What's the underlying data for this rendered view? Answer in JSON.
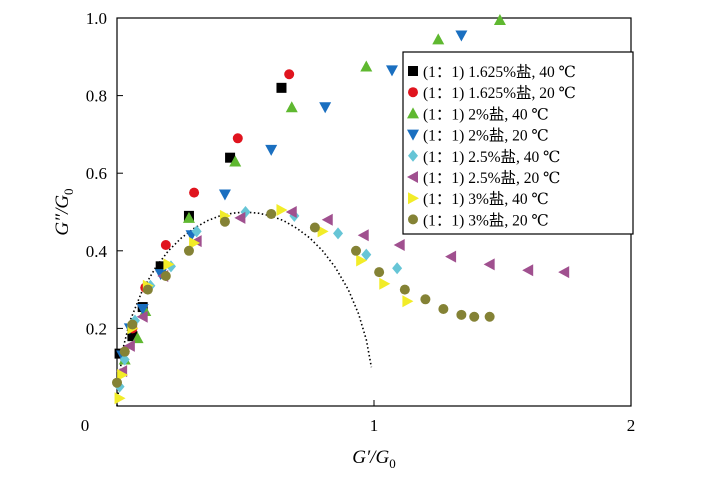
{
  "chart_data": {
    "type": "scatter",
    "title": "",
    "xlabel": "G′/G",
    "xlabel_sub": "0",
    "ylabel": "G″/G",
    "ylabel_sub": "0",
    "xlim": [
      0,
      2
    ],
    "ylim": [
      0,
      1.0
    ],
    "xticks": [
      0,
      1,
      2
    ],
    "yticks": [
      0.2,
      0.4,
      0.6,
      0.8,
      1.0
    ],
    "xtick_labels": [
      "0",
      "1",
      "2"
    ],
    "ytick_labels": [
      "0.2",
      "0.4",
      "0.6",
      "0.8",
      "1.0"
    ],
    "grid": false,
    "legend_position": "top-right",
    "series": [
      {
        "name": "(1：1) 1.625%盐, 40 ℃",
        "marker": "square",
        "color": "#000000",
        "x": [
          0.01,
          0.06,
          0.1,
          0.17,
          0.28,
          0.44,
          0.64
        ],
        "y": [
          0.135,
          0.18,
          0.255,
          0.36,
          0.49,
          0.64,
          0.82
        ]
      },
      {
        "name": "(1：1) 1.625%盐, 20 ℃",
        "marker": "circle",
        "color": "#e0141e",
        "x": [
          0.03,
          0.06,
          0.11,
          0.19,
          0.3,
          0.47,
          0.67
        ],
        "y": [
          0.14,
          0.2,
          0.305,
          0.415,
          0.55,
          0.69,
          0.855
        ]
      },
      {
        "name": "(1：1) 2%盐, 40 ℃",
        "marker": "triangle-up",
        "color": "#5fb830",
        "x": [
          0.03,
          0.08,
          0.11,
          0.28,
          0.46,
          0.68,
          0.97,
          1.25,
          1.49
        ],
        "y": [
          0.12,
          0.175,
          0.245,
          0.485,
          0.63,
          0.77,
          0.875,
          0.945,
          0.995
        ]
      },
      {
        "name": "(1：1) 2%盐, 20 ℃",
        "marker": "triangle-down",
        "color": "#1a6fc0",
        "x": [
          0.02,
          0.05,
          0.1,
          0.17,
          0.29,
          0.42,
          0.6,
          0.81,
          1.07,
          1.34
        ],
        "y": [
          0.13,
          0.2,
          0.25,
          0.34,
          0.44,
          0.545,
          0.66,
          0.77,
          0.865,
          0.955
        ]
      },
      {
        "name": "(1：1) 2.5%盐, 40 ℃",
        "marker": "diamond",
        "color": "#66c5d6",
        "x": [
          0.01,
          0.03,
          0.07,
          0.13,
          0.21,
          0.31,
          0.5,
          0.69,
          0.86,
          0.97,
          1.09
        ],
        "y": [
          0.05,
          0.12,
          0.22,
          0.31,
          0.36,
          0.45,
          0.5,
          0.49,
          0.445,
          0.39,
          0.355
        ]
      },
      {
        "name": "(1：1) 2.5%盐, 20 ℃",
        "marker": "triangle-left",
        "color": "#a0508f",
        "x": [
          0.02,
          0.05,
          0.1,
          0.18,
          0.31,
          0.48,
          0.68,
          0.82,
          0.96,
          1.1,
          1.3,
          1.45,
          1.6,
          1.74
        ],
        "y": [
          0.09,
          0.155,
          0.23,
          0.335,
          0.425,
          0.485,
          0.5,
          0.48,
          0.44,
          0.415,
          0.385,
          0.365,
          0.35,
          0.345
        ]
      },
      {
        "name": "(1：1) 3%盐, 40 ℃",
        "marker": "triangle-right",
        "color": "#f2ec28",
        "x": [
          0.01,
          0.02,
          0.06,
          0.12,
          0.2,
          0.3,
          0.42,
          0.64,
          0.8,
          0.95,
          1.04,
          1.13
        ],
        "y": [
          0.02,
          0.08,
          0.2,
          0.31,
          0.365,
          0.42,
          0.49,
          0.505,
          0.45,
          0.375,
          0.315,
          0.27
        ]
      },
      {
        "name": "(1：1) 3%盐, 20 ℃",
        "marker": "circle",
        "color": "#848235",
        "x": [
          0.0,
          0.03,
          0.06,
          0.12,
          0.19,
          0.28,
          0.42,
          0.6,
          0.77,
          0.93,
          1.02,
          1.12,
          1.2,
          1.27,
          1.34,
          1.39,
          1.45
        ],
        "y": [
          0.06,
          0.14,
          0.21,
          0.3,
          0.335,
          0.4,
          0.475,
          0.495,
          0.46,
          0.4,
          0.345,
          0.3,
          0.275,
          0.25,
          0.235,
          0.23,
          0.23
        ]
      }
    ],
    "reference_curve": {
      "style": "dotted",
      "color": "#000000",
      "x": [
        0.0,
        0.02,
        0.05,
        0.1,
        0.15,
        0.2,
        0.25,
        0.3,
        0.35,
        0.4,
        0.45,
        0.5,
        0.55,
        0.6,
        0.65,
        0.7,
        0.75,
        0.8,
        0.85,
        0.9,
        0.94,
        0.97,
        0.99
      ],
      "y": [
        0.0,
        0.139,
        0.218,
        0.3,
        0.357,
        0.4,
        0.433,
        0.458,
        0.477,
        0.49,
        0.497,
        0.5,
        0.497,
        0.49,
        0.477,
        0.458,
        0.433,
        0.4,
        0.357,
        0.3,
        0.237,
        0.171,
        0.1
      ]
    }
  }
}
